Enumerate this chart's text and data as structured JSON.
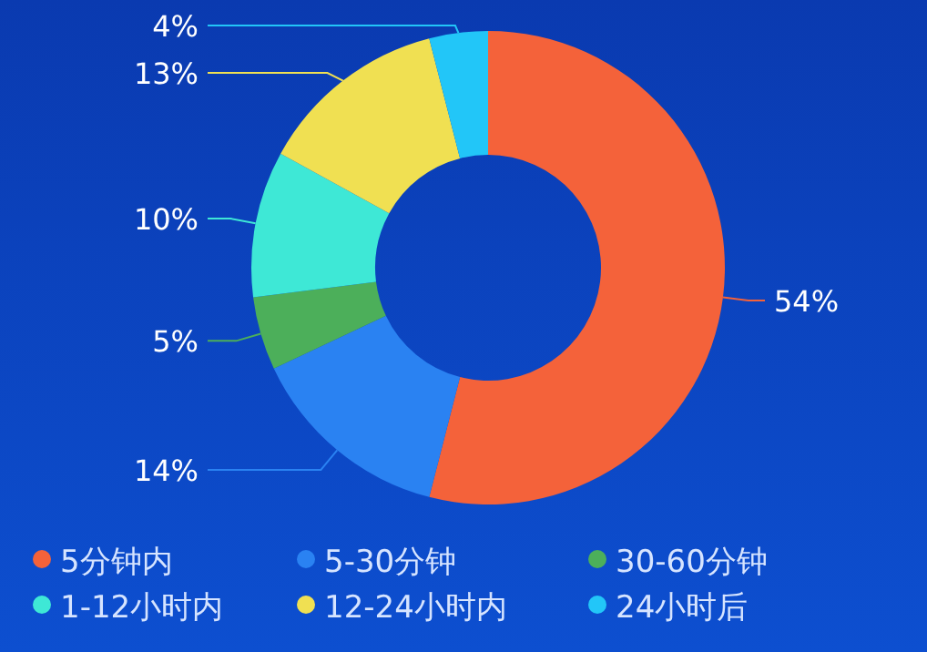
{
  "chart_data": {
    "type": "donut",
    "categories": [
      "5分钟内",
      "5-30分钟",
      "30-60分钟",
      "1-12小时内",
      "12-24小时内",
      "24小时后"
    ],
    "values": [
      54,
      14,
      5,
      10,
      13,
      4
    ],
    "colors": [
      "#f4623a",
      "#2a82f2",
      "#4caf5a",
      "#3ee8d6",
      "#f0e052",
      "#22c6f8"
    ],
    "value_labels": [
      "54%",
      "14%",
      "5%",
      "10%",
      "13%",
      "4%"
    ],
    "legend": "bottom"
  }
}
